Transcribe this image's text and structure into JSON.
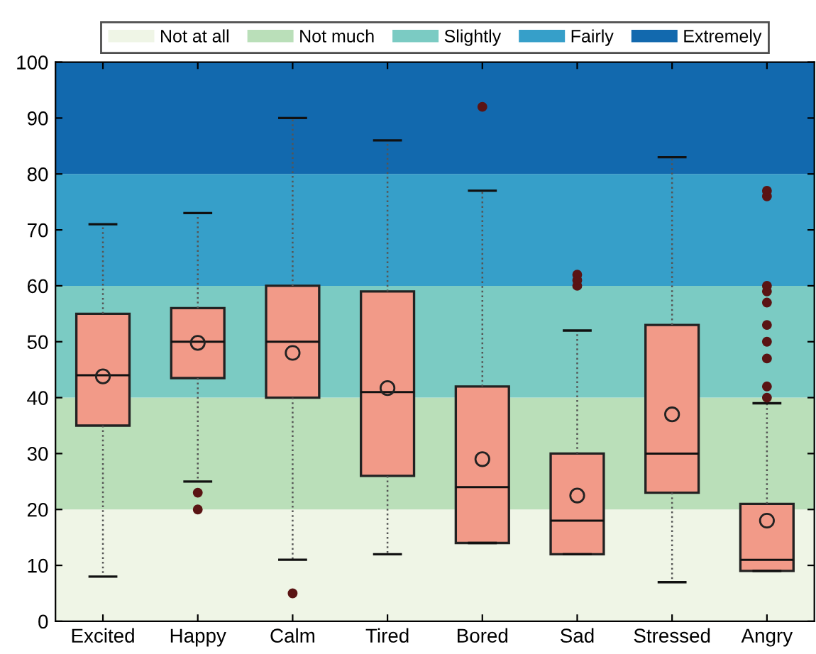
{
  "chart_data": {
    "type": "box",
    "categories": [
      "Excited",
      "Happy",
      "Calm",
      "Tired",
      "Bored",
      "Sad",
      "Stressed",
      "Angry"
    ],
    "color": "#f29a88",
    "boxes": [
      {
        "low": 8,
        "q1": 35,
        "median": 44,
        "q3": 55,
        "high": 71,
        "mean": 43.8
      },
      {
        "low": 25,
        "q1": 43.5,
        "median": 50,
        "q3": 56,
        "high": 73,
        "mean": 49.8,
        "outliers": [
          23,
          20
        ]
      },
      {
        "low": 11,
        "q1": 40,
        "median": 50,
        "q3": 60,
        "high": 90,
        "mean": 48,
        "outliers": [
          5
        ]
      },
      {
        "low": 12,
        "q1": 26,
        "median": 41,
        "q3": 59,
        "high": 86,
        "mean": 41.7
      },
      {
        "low": 14,
        "q1": 14,
        "median": 24,
        "q3": 42,
        "high": 77,
        "mean": 29,
        "outliers": [
          92
        ]
      },
      {
        "low": 12,
        "q1": 12,
        "median": 18,
        "q3": 30,
        "high": 52,
        "mean": 22.5,
        "outliers": [
          60,
          61,
          62
        ]
      },
      {
        "low": 7,
        "q1": 23,
        "median": 30,
        "q3": 53,
        "high": 83,
        "mean": 37
      },
      {
        "low": 9,
        "q1": 9,
        "median": 11,
        "q3": 21,
        "high": 39,
        "mean": 18,
        "outliers": [
          40,
          42,
          47,
          50,
          53,
          57,
          59,
          60,
          76,
          77
        ]
      }
    ],
    "bands": [
      {
        "axis": "y",
        "from": 0,
        "to": 20,
        "label": "Not at all",
        "color": "#eff5e6"
      },
      {
        "axis": "y",
        "from": 20,
        "to": 40,
        "label": "Not much",
        "color": "#badfb9"
      },
      {
        "axis": "y",
        "from": 40,
        "to": 60,
        "label": "Slightly",
        "color": "#7bcbc3"
      },
      {
        "axis": "y",
        "from": 60,
        "to": 80,
        "label": "Fairly",
        "color": "#369fc9"
      },
      {
        "axis": "y",
        "from": 80,
        "to": 100,
        "label": "Extremely",
        "color": "#1269ae"
      }
    ],
    "ylim": [
      0,
      100
    ],
    "yticks": [
      0,
      10,
      20,
      30,
      40,
      50,
      60,
      70,
      80,
      90,
      100
    ],
    "legend": "top",
    "grid": false
  }
}
